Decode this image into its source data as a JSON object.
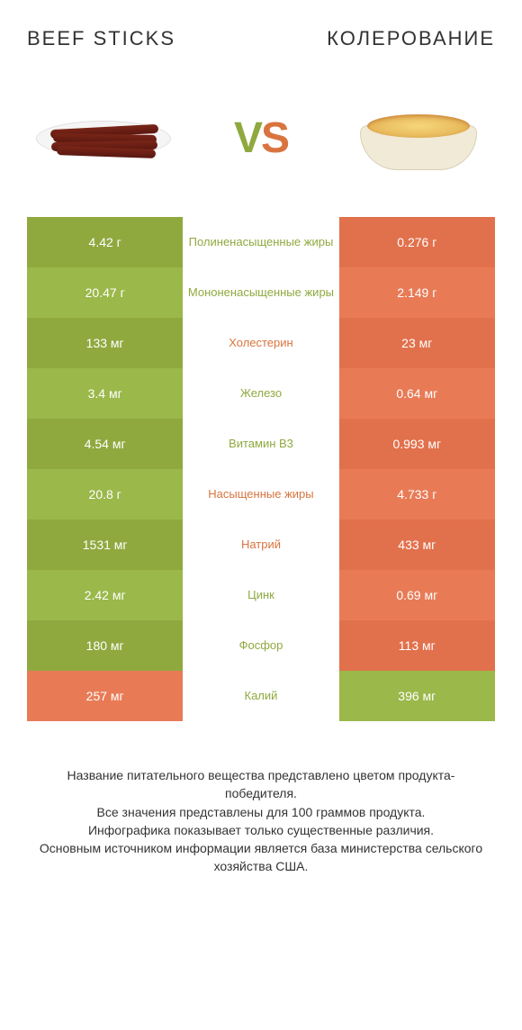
{
  "header": {
    "left_title": "Beef sticks",
    "right_title": "КОЛЕРОВАНИЕ",
    "vs_v": "V",
    "vs_s": "S"
  },
  "colors": {
    "green_a": "#8fa93f",
    "green_b": "#9bb84a",
    "orange_a": "#e1714c",
    "orange_b": "#e87b56",
    "nutrient_green": "#8fa93f",
    "nutrient_orange": "#d9743f",
    "bg": "#ffffff"
  },
  "rows": [
    {
      "left": "4.42 г",
      "mid": "Полиненасыщенные жиры",
      "right": "0.276 г",
      "winner": "left",
      "mid_color": "green"
    },
    {
      "left": "20.47 г",
      "mid": "Мононенасыщенные жиры",
      "right": "2.149 г",
      "winner": "left",
      "mid_color": "green"
    },
    {
      "left": "133 мг",
      "mid": "Холестерин",
      "right": "23 мг",
      "winner": "left",
      "mid_color": "orange"
    },
    {
      "left": "3.4 мг",
      "mid": "Железо",
      "right": "0.64 мг",
      "winner": "left",
      "mid_color": "green"
    },
    {
      "left": "4.54 мг",
      "mid": "Витамин B3",
      "right": "0.993 мг",
      "winner": "left",
      "mid_color": "green"
    },
    {
      "left": "20.8 г",
      "mid": "Насыщенные жиры",
      "right": "4.733 г",
      "winner": "left",
      "mid_color": "orange"
    },
    {
      "left": "1531 мг",
      "mid": "Натрий",
      "right": "433 мг",
      "winner": "left",
      "mid_color": "orange"
    },
    {
      "left": "2.42 мг",
      "mid": "Цинк",
      "right": "0.69 мг",
      "winner": "left",
      "mid_color": "green"
    },
    {
      "left": "180 мг",
      "mid": "Фосфор",
      "right": "113 мг",
      "winner": "left",
      "mid_color": "green"
    },
    {
      "left": "257 мг",
      "mid": "Калий",
      "right": "396 мг",
      "winner": "right",
      "mid_color": "green"
    }
  ],
  "footer": "Название питательного вещества представлено цветом продукта-победителя.\nВсе значения представлены для 100 граммов продукта.\nИнфографика показывает только существенные различия.\nОсновным источником информации является база министерства сельского хозяйства США."
}
